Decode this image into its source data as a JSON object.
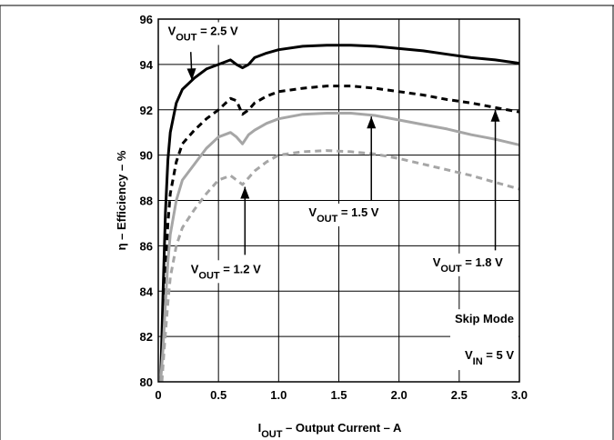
{
  "chart_data": {
    "type": "line",
    "title": "",
    "xlabel": {
      "main": "I",
      "sub": "OUT",
      "rest": " – Output Current – A"
    },
    "ylabel": "η – Efficiency – %",
    "xlim": [
      0,
      3.0
    ],
    "ylim": [
      80,
      96
    ],
    "x_ticks": [
      0,
      0.5,
      1.0,
      1.5,
      2.0,
      2.5,
      3.0
    ],
    "x_tick_labels": [
      "0",
      "0.5",
      "1.0",
      "1.5",
      "2.0",
      "2.5",
      "3.0"
    ],
    "y_ticks": [
      80,
      82,
      84,
      86,
      88,
      90,
      92,
      94,
      96
    ],
    "y_tick_labels": [
      "80",
      "82",
      "84",
      "86",
      "88",
      "90",
      "92",
      "94",
      "96"
    ],
    "grid": true,
    "series": [
      {
        "name": "V_OUT = 2.5 V",
        "color": "#000000",
        "dash": "solid",
        "x": [
          0.02,
          0.04,
          0.06,
          0.08,
          0.1,
          0.15,
          0.2,
          0.3,
          0.4,
          0.5,
          0.6,
          0.65,
          0.7,
          0.75,
          0.8,
          0.9,
          1.0,
          1.2,
          1.4,
          1.6,
          1.8,
          2.0,
          2.2,
          2.4,
          2.6,
          2.8,
          3.0
        ],
        "y": [
          80.0,
          84.0,
          87.5,
          89.8,
          91.0,
          92.3,
          92.9,
          93.4,
          93.8,
          94.0,
          94.2,
          94.0,
          93.85,
          94.0,
          94.3,
          94.5,
          94.65,
          94.8,
          94.85,
          94.85,
          94.8,
          94.7,
          94.6,
          94.45,
          94.3,
          94.2,
          94.05
        ]
      },
      {
        "name": "V_OUT = 1.8 V",
        "color": "#000000",
        "dash": "dashed",
        "x": [
          0.02,
          0.04,
          0.06,
          0.08,
          0.1,
          0.15,
          0.2,
          0.3,
          0.4,
          0.5,
          0.6,
          0.65,
          0.7,
          0.75,
          0.8,
          0.9,
          1.0,
          1.2,
          1.4,
          1.6,
          1.8,
          2.0,
          2.2,
          2.4,
          2.6,
          2.8,
          3.0
        ],
        "y": [
          80.0,
          82.5,
          85.0,
          87.0,
          88.3,
          89.7,
          90.5,
          91.1,
          91.6,
          92.0,
          92.5,
          92.4,
          91.8,
          92.0,
          92.3,
          92.6,
          92.8,
          92.95,
          93.05,
          93.05,
          92.95,
          92.8,
          92.65,
          92.45,
          92.3,
          92.1,
          91.9
        ]
      },
      {
        "name": "V_OUT = 1.5 V",
        "color": "#a6a6a6",
        "dash": "solid",
        "x": [
          0.02,
          0.04,
          0.06,
          0.08,
          0.1,
          0.15,
          0.2,
          0.3,
          0.4,
          0.5,
          0.6,
          0.65,
          0.7,
          0.75,
          0.8,
          0.9,
          1.0,
          1.2,
          1.4,
          1.6,
          1.8,
          2.0,
          2.2,
          2.4,
          2.6,
          2.8,
          3.0
        ],
        "y": [
          80.0,
          81.5,
          83.5,
          85.3,
          86.5,
          88.0,
          88.9,
          89.6,
          90.3,
          90.8,
          91.0,
          90.8,
          90.5,
          90.9,
          91.1,
          91.4,
          91.6,
          91.8,
          91.85,
          91.85,
          91.75,
          91.55,
          91.35,
          91.15,
          90.9,
          90.7,
          90.45
        ]
      },
      {
        "name": "V_OUT = 1.2 V",
        "color": "#a6a6a6",
        "dash": "dashed",
        "x": [
          0.03,
          0.05,
          0.08,
          0.1,
          0.15,
          0.2,
          0.3,
          0.4,
          0.5,
          0.6,
          0.65,
          0.7,
          0.75,
          0.8,
          0.9,
          1.0,
          1.2,
          1.4,
          1.6,
          1.8,
          2.0,
          2.2,
          2.4,
          2.6,
          2.8,
          3.0
        ],
        "y": [
          80.0,
          81.5,
          83.5,
          84.6,
          86.0,
          86.8,
          87.6,
          88.3,
          88.9,
          89.1,
          88.9,
          88.7,
          89.0,
          89.3,
          89.7,
          90.0,
          90.15,
          90.2,
          90.15,
          90.05,
          89.85,
          89.6,
          89.35,
          89.1,
          88.8,
          88.5
        ]
      }
    ],
    "annotations": [
      {
        "id": "vout-2-5",
        "main": "V",
        "sub": "OUT",
        "rest": " = 2.5 V",
        "tx": 0.08,
        "ty": 95.3,
        "arrow_from": [
          0.27,
          94.55
        ],
        "arrow_to": [
          0.28,
          93.3
        ]
      },
      {
        "id": "vout-1-5",
        "main": "V",
        "sub": "OUT",
        "rest": " = 1.5 V",
        "tx": 1.25,
        "ty": 87.3,
        "arrow_from": [
          1.77,
          88.0
        ],
        "arrow_to": [
          1.77,
          91.7
        ]
      },
      {
        "id": "vout-1-2",
        "main": "V",
        "sub": "OUT",
        "rest": " = 1.2 V",
        "tx": 0.27,
        "ty": 84.8,
        "arrow_from": [
          0.72,
          85.6
        ],
        "arrow_to": [
          0.72,
          88.6
        ]
      },
      {
        "id": "vout-1-8",
        "main": "V",
        "sub": "OUT",
        "rest": " = 1.8 V",
        "tx": 2.28,
        "ty": 85.1,
        "arrow_from": [
          2.8,
          85.8
        ],
        "arrow_to": [
          2.8,
          92.0
        ]
      }
    ],
    "note": {
      "line1": "Skip Mode",
      "line2_main": "V",
      "line2_sub": "IN",
      "line2_rest": " = 5 V"
    }
  }
}
